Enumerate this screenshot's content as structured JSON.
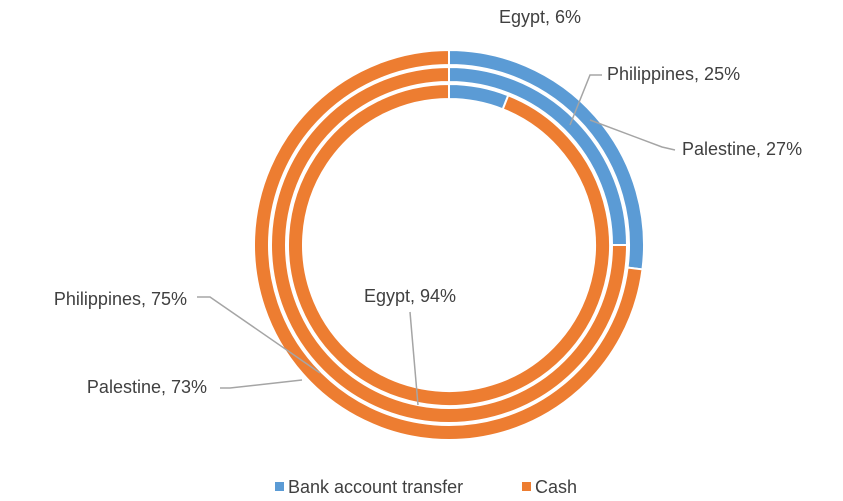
{
  "chart_data": {
    "type": "doughnut",
    "series": [
      {
        "name": "Bank account transfer",
        "color": "#5b9bd5",
        "values": [
          6,
          25,
          27
        ],
        "value_labels": [
          "Egypt, 6%",
          "Philippines, 25%",
          "Palestine, 27%"
        ]
      },
      {
        "name": "Cash",
        "color": "#ed7d31",
        "values": [
          94,
          75,
          73
        ],
        "value_labels": [
          "Egypt, 94%",
          "Philippines, 75%",
          "Palestine, 73%"
        ]
      }
    ]
  }
}
